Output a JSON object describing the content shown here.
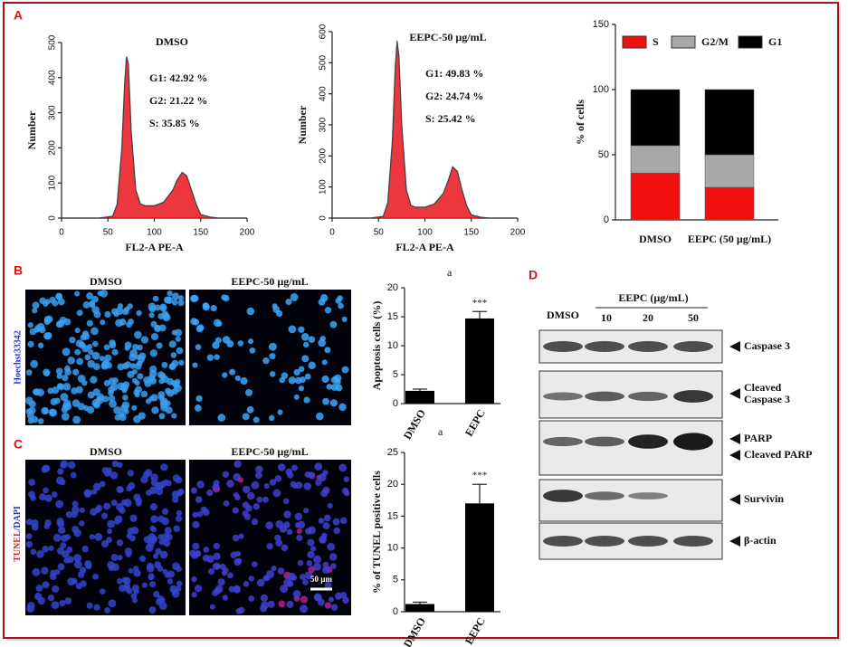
{
  "panels": {
    "a": "A",
    "b": "B",
    "c": "C",
    "d": "D"
  },
  "microscopy": {
    "b_left": "DMSO",
    "b_right": "EEPC-50 µg/mL",
    "b_stain": "Hoechst33342",
    "c_left": "DMSO",
    "c_right": "EEPC-50 µg/mL",
    "c_stain_1": "TUNEL",
    "c_stain_2": "/DAPI",
    "scale_bar": "50 µm"
  },
  "notes": [
    "a",
    "a"
  ],
  "blot": {
    "lane_control": "DMSO",
    "group": "EEPC (µg/mL)",
    "lanes": [
      "10",
      "20",
      "50"
    ],
    "labels": [
      "Caspase 3",
      "Cleaved",
      "Caspase 3",
      "PARP",
      "Cleaved PARP",
      "Survivin",
      "β-actin"
    ]
  },
  "chart_data": [
    {
      "type": "line",
      "title": "DMSO",
      "xlabel": "FL2-A PE-A",
      "ylabel": "Number",
      "annotations": [
        "G1: 42.92 %",
        "G2: 21.22 %",
        "S:  35.85 %"
      ],
      "x": [
        40,
        55,
        60,
        65,
        68,
        70,
        72,
        75,
        80,
        85,
        90,
        100,
        110,
        120,
        125,
        130,
        135,
        140,
        145,
        150,
        160,
        170
      ],
      "series": [
        {
          "color": "#e8141b",
          "values": [
            0,
            5,
            40,
            200,
            380,
            460,
            440,
            250,
            80,
            40,
            35,
            35,
            45,
            80,
            110,
            130,
            120,
            80,
            40,
            10,
            3,
            0
          ]
        }
      ],
      "xlim": [
        0,
        200
      ],
      "xticks": [
        0,
        50,
        100,
        150,
        200
      ],
      "ylim": [
        0,
        500
      ],
      "yticks": [
        0,
        100,
        200,
        300,
        400,
        500
      ]
    },
    {
      "type": "line",
      "title": "EEPC-50 µg/mL",
      "xlabel": "FL2-A PE-A",
      "ylabel": "Number",
      "annotations": [
        "G1: 49.83 %",
        "G2: 24.74 %",
        "S: 25.42 %"
      ],
      "x": [
        40,
        55,
        60,
        65,
        68,
        70,
        72,
        75,
        80,
        85,
        90,
        100,
        110,
        120,
        125,
        130,
        135,
        140,
        145,
        150,
        160,
        170
      ],
      "series": [
        {
          "color": "#e8141b",
          "values": [
            0,
            5,
            50,
            250,
            480,
            570,
            520,
            300,
            90,
            40,
            35,
            35,
            45,
            80,
            120,
            165,
            150,
            90,
            40,
            10,
            3,
            0
          ]
        }
      ],
      "xlim": [
        0,
        200
      ],
      "xticks": [
        0,
        50,
        100,
        150,
        200
      ],
      "ylim": [
        0,
        600
      ],
      "yticks": [
        0,
        100,
        200,
        300,
        400,
        500,
        600
      ]
    },
    {
      "type": "stacked_bar",
      "ylabel": "% of cells",
      "categories": [
        "DMSO",
        "EEPC (50 µg/mL)"
      ],
      "series": [
        {
          "name": "S",
          "color": "#f01010",
          "values": [
            36,
            25
          ]
        },
        {
          "name": "G2/M",
          "color": "#a8a8a8",
          "values": [
            21,
            25
          ]
        },
        {
          "name": "G1",
          "color": "#000000",
          "values": [
            43,
            50
          ]
        }
      ],
      "ylim": [
        0,
        150
      ],
      "yticks": [
        0,
        50,
        100,
        150
      ]
    },
    {
      "type": "bar",
      "ylabel": "Apoptosis cells (%)",
      "categories": [
        "DMSO",
        "EEPC"
      ],
      "values": [
        2.2,
        14.7
      ],
      "errors": [
        0.3,
        1.2
      ],
      "annotations": [
        "***"
      ],
      "color": "#000000",
      "ylim": [
        0,
        20
      ],
      "yticks": [
        0,
        5,
        10,
        15,
        20
      ]
    },
    {
      "type": "bar",
      "ylabel": "% of TUNEL positive cells",
      "categories": [
        "DMSO",
        "EEPC"
      ],
      "values": [
        1.2,
        17
      ],
      "errors": [
        0.3,
        3
      ],
      "annotations": [
        "***"
      ],
      "color": "#000000",
      "ylim": [
        0,
        25
      ],
      "yticks": [
        0,
        5,
        10,
        15,
        20,
        25
      ]
    }
  ]
}
